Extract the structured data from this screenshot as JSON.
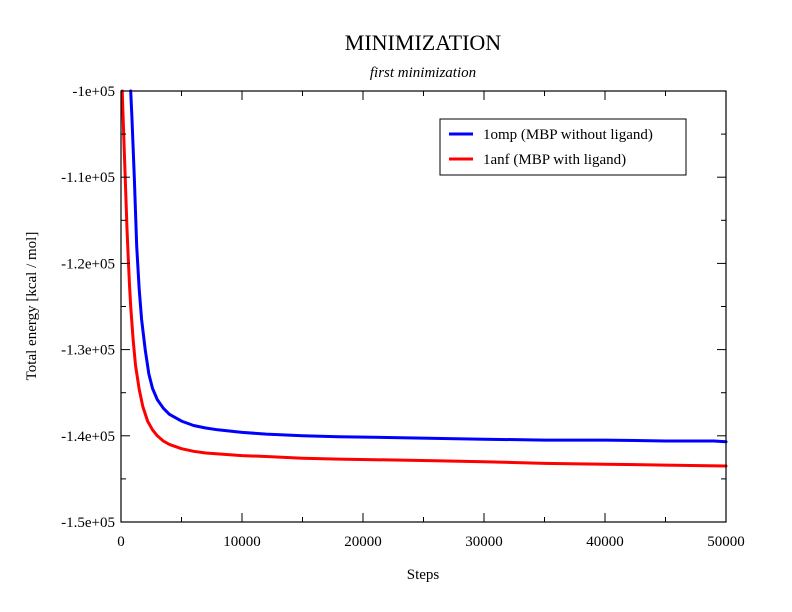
{
  "chart_data": {
    "type": "line",
    "title": "MINIMIZATION",
    "subtitle": "first minimization",
    "xlabel": "Steps",
    "ylabel": "Total energy [kcal / mol]",
    "xlim": [
      0,
      50000
    ],
    "ylim": [
      -150000,
      -100000
    ],
    "x_ticks": [
      0,
      10000,
      20000,
      30000,
      40000,
      50000
    ],
    "x_tick_labels": [
      "0",
      "10000",
      "20000",
      "30000",
      "40000",
      "50000"
    ],
    "y_ticks": [
      -100000,
      -110000,
      -120000,
      -130000,
      -140000,
      -150000
    ],
    "y_tick_labels": [
      "-1e+05",
      "-1.1e+05",
      "-1.2e+05",
      "-1.3e+05",
      "-1.4e+05",
      "-1.5e+05"
    ],
    "grid": false,
    "legend_position": "top-right",
    "series": [
      {
        "name": "1omp (MBP without ligand)",
        "color": "#0000ff",
        "x": [
          800,
          900,
          1000,
          1100,
          1200,
          1300,
          1500,
          1700,
          2000,
          2300,
          2600,
          3000,
          3500,
          4000,
          5000,
          6000,
          7000,
          8000,
          10000,
          12000,
          15000,
          18000,
          22000,
          26000,
          30000,
          35000,
          40000,
          45000,
          49000,
          50000
        ],
        "y": [
          -100000,
          -103000,
          -106500,
          -110000,
          -114000,
          -118000,
          -123000,
          -126500,
          -130000,
          -132800,
          -134500,
          -135800,
          -136800,
          -137500,
          -138300,
          -138800,
          -139100,
          -139300,
          -139600,
          -139800,
          -140000,
          -140100,
          -140200,
          -140300,
          -140400,
          -140500,
          -140500,
          -140600,
          -140600,
          -140700
        ]
      },
      {
        "name": "1anf (MBP with ligand)",
        "color": "#ff0000",
        "x": [
          100,
          200,
          300,
          400,
          500,
          600,
          700,
          800,
          1000,
          1200,
          1500,
          1800,
          2200,
          2600,
          3000,
          3500,
          4000,
          5000,
          6000,
          7000,
          8000,
          10000,
          12000,
          15000,
          18000,
          22000,
          26000,
          30000,
          35000,
          40000,
          45000,
          50000
        ],
        "y": [
          -100000,
          -104000,
          -108000,
          -112000,
          -116000,
          -119500,
          -122500,
          -125000,
          -128800,
          -131800,
          -134600,
          -136600,
          -138300,
          -139300,
          -140000,
          -140600,
          -141000,
          -141500,
          -141800,
          -142000,
          -142100,
          -142300,
          -142400,
          -142600,
          -142700,
          -142800,
          -142900,
          -143000,
          -143200,
          -143300,
          -143400,
          -143500
        ]
      }
    ]
  }
}
